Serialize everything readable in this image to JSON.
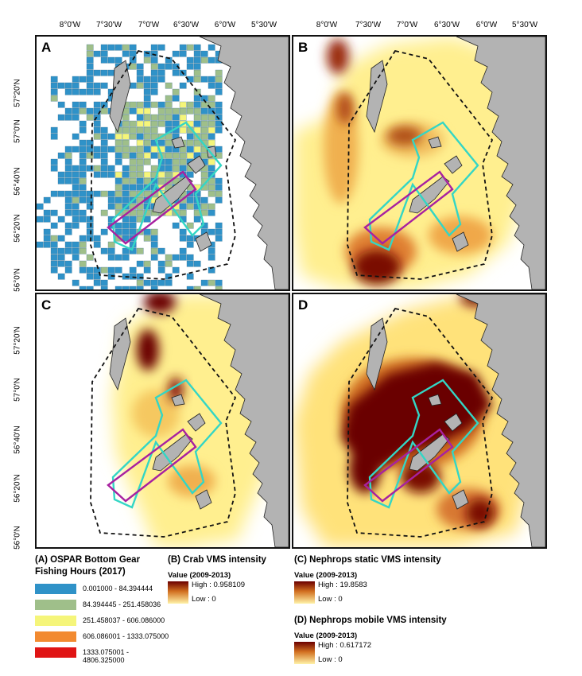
{
  "longitude_ticks": [
    "8°0'W",
    "7°30'W",
    "7°0'W",
    "6°30'W",
    "6°0'W",
    "5°30'W"
  ],
  "latitude_ticks": [
    "57°20'N",
    "57°0'N",
    "56°40'N",
    "56°20'N",
    "56°0'N"
  ],
  "panels": [
    {
      "letter": "A"
    },
    {
      "letter": "B"
    },
    {
      "letter": "C"
    },
    {
      "letter": "D"
    }
  ],
  "colors": {
    "land": "#b3b3b3",
    "cyan_boundary": "#33d6c5",
    "magenta_boundary": "#a821a0",
    "dashed_boundary": "#111111",
    "heat_low": "#ffef8f",
    "heat_high": "#6b0000"
  },
  "legend_a": {
    "title_line1": "(A) OSPAR Bottom Gear",
    "title_line2": "Fishing Hours (2017)",
    "classes": [
      {
        "label": "0.001000 - 84.394444",
        "color": "#2f92c8"
      },
      {
        "label": "84.394445 - 251.458036",
        "color": "#9fbf8a"
      },
      {
        "label": "251.458037 - 606.086000",
        "color": "#f5f57a"
      },
      {
        "label": "606.086001 - 1333.075000",
        "color": "#f28a30"
      },
      {
        "label": "1333.075001 - 4806.325000",
        "color": "#e01414"
      }
    ]
  },
  "legend_b": {
    "title": "(B) Crab VMS intensity",
    "subtitle": "Value (2009-2013)",
    "high": "High : 0.958109",
    "low": "Low : 0"
  },
  "legend_c": {
    "title": "(C) Nephrops static VMS intensity",
    "subtitle": "Value (2009-2013)",
    "high": "High : 19.8583",
    "low": "Low : 0"
  },
  "legend_d": {
    "title": "(D) Nephrops mobile VMS intensity",
    "subtitle": "Value (2009-2013)",
    "high": "High : 0.617172",
    "low": "Low : 0"
  }
}
